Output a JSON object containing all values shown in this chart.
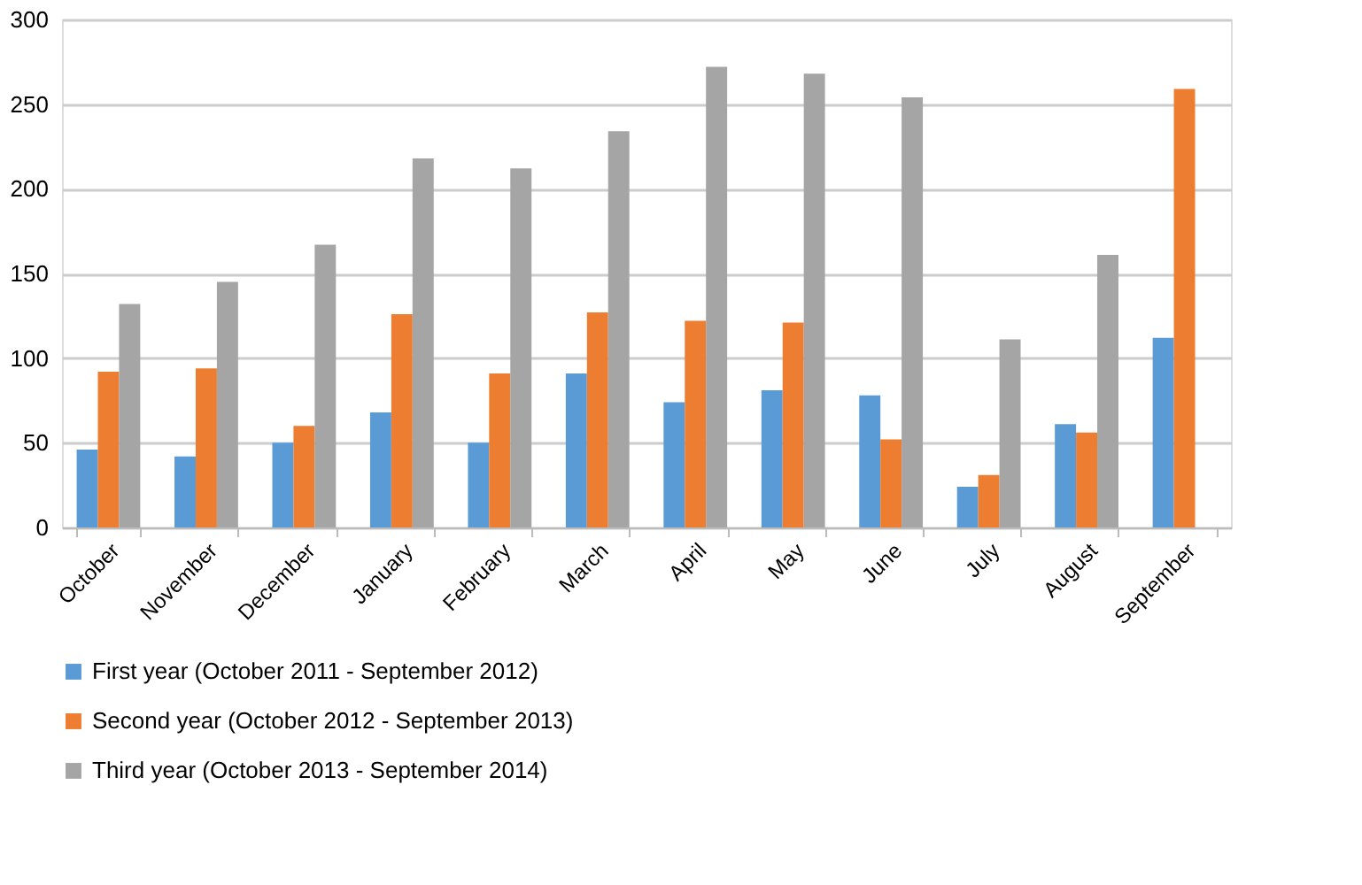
{
  "chart_data": {
    "type": "bar",
    "categories": [
      "October",
      "November",
      "December",
      "January",
      "February",
      "March",
      "April",
      "May",
      "June",
      "July",
      "August",
      "September"
    ],
    "series": [
      {
        "name": "First year (October 2011 - September 2012)",
        "color": "#5b9bd5",
        "values": [
          46,
          42,
          50,
          68,
          50,
          91,
          74,
          81,
          78,
          24,
          61,
          112
        ]
      },
      {
        "name": "Second year (October 2012 - September 2013)",
        "color": "#ed7d31",
        "values": [
          92,
          94,
          60,
          126,
          91,
          127,
          122,
          121,
          52,
          31,
          56,
          259
        ]
      },
      {
        "name": "Third year (October 2013 - September 2014)",
        "color": "#a5a5a5",
        "values": [
          132,
          145,
          167,
          218,
          212,
          234,
          272,
          268,
          254,
          111,
          161,
          null
        ]
      }
    ],
    "ylim": [
      0,
      300
    ],
    "yticks": [
      0,
      50,
      100,
      150,
      200,
      250,
      300
    ],
    "grid": "y",
    "legend": "bottom"
  }
}
